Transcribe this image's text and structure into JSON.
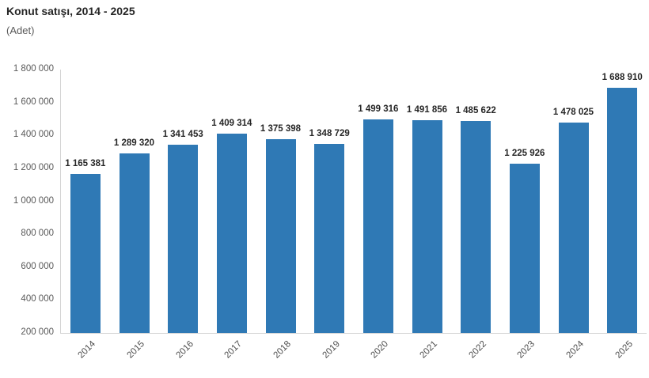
{
  "page": {
    "background_color": "#ffffff"
  },
  "chart_data": {
    "type": "bar",
    "title": "Konut satışı, 2014 - 2025",
    "subtitle": "(Adet)",
    "categories": [
      "2014",
      "2015",
      "2016",
      "2017",
      "2018",
      "2019",
      "2020",
      "2021",
      "2022",
      "2023",
      "2024",
      "2025"
    ],
    "values": [
      1165381,
      1289320,
      1341453,
      1409314,
      1375398,
      1348729,
      1499316,
      1491856,
      1485622,
      1225926,
      1478025,
      1688910
    ],
    "value_labels": [
      "1 165 381",
      "1 289 320",
      "1 341 453",
      "1 409 314",
      "1 375 398",
      "1 348 729",
      "1 499 316",
      "1 491 856",
      "1 485 622",
      "1 225 926",
      "1 478 025",
      "1 688 910"
    ],
    "ytick_labels": [
      "1 800 000",
      "1 600 000",
      "1 400 000",
      "1 200 000",
      "1 000 000",
      "800 000",
      "600 000",
      "400 000",
      "200 000"
    ],
    "xlabel": "",
    "ylabel": "",
    "ylim": [
      200000,
      1800000
    ],
    "ytick_step": 200000,
    "grid": false,
    "legend": "none",
    "thousands_separator": " ",
    "bar_color": "#2f79b5",
    "axis_line_color": "#d3d3d3",
    "value_label_color": "#262626",
    "ytick_label_color": "#595959",
    "xtick_label_color": "#4d4d4d",
    "title_color": "#262626",
    "subtitle_color": "#595959"
  }
}
